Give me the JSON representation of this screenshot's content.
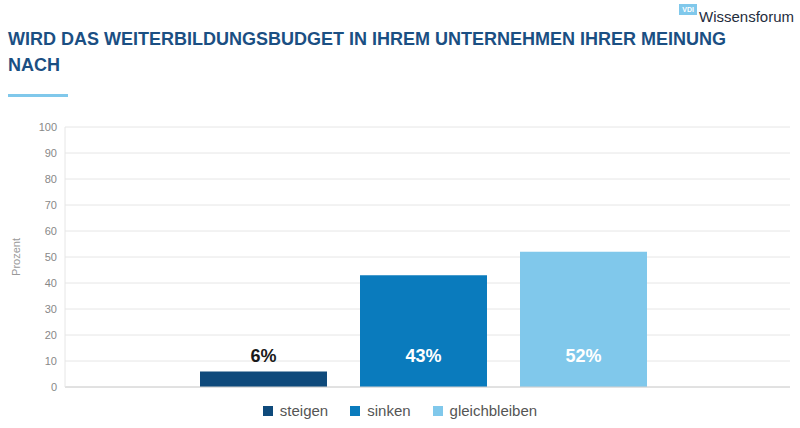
{
  "chart_data": {
    "type": "bar",
    "title": "WIRD DAS WEITERBILDUNGSBUDGET IN IHREM UNTERNEHMEN IHRER MEINUNG NACH",
    "annotations": [
      "VDI",
      "Wissensforum"
    ],
    "y_label": "Prozent",
    "categories": [
      "steigen",
      "sinken",
      "gleichbleiben"
    ],
    "values": [
      6,
      43,
      52
    ],
    "value_labels": [
      "6%",
      "43%",
      "52%"
    ],
    "colors": [
      "#0f4a7b",
      "#0a7bbd",
      "#80c8eb"
    ],
    "ylim": [
      0,
      100
    ],
    "yticks": [
      0,
      10,
      20,
      30,
      40,
      50,
      60,
      70,
      80,
      90,
      100
    ],
    "grid": true,
    "legend": "bottom",
    "data_labels": true,
    "tick_labels": "y"
  }
}
